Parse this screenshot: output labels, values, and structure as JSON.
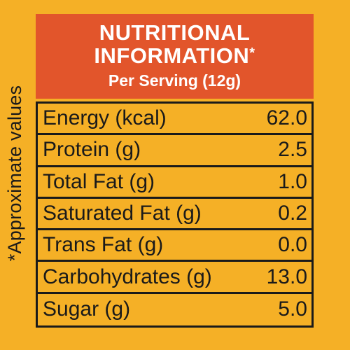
{
  "header": {
    "title_line1": "NUTRITIONAL",
    "title_line2": "INFORMATION",
    "asterisk": "*",
    "subtitle": "Per Serving (12g)"
  },
  "side_note": "*Approximate values",
  "nutrients": [
    {
      "label": "Energy (kcal)",
      "value": "62.0"
    },
    {
      "label": "Protein (g)",
      "value": "2.5"
    },
    {
      "label": "Total Fat (g)",
      "value": "1.0"
    },
    {
      "label": "Saturated Fat (g)",
      "value": "0.2"
    },
    {
      "label": "Trans Fat (g)",
      "value": "0.0"
    },
    {
      "label": "Carbohydrates (g)",
      "value": "13.0"
    },
    {
      "label": "Sugar (g)",
      "value": "5.0"
    }
  ],
  "colors": {
    "background": "#F5B026",
    "header_bg": "#E2552B",
    "text": "#1a1a1a"
  }
}
